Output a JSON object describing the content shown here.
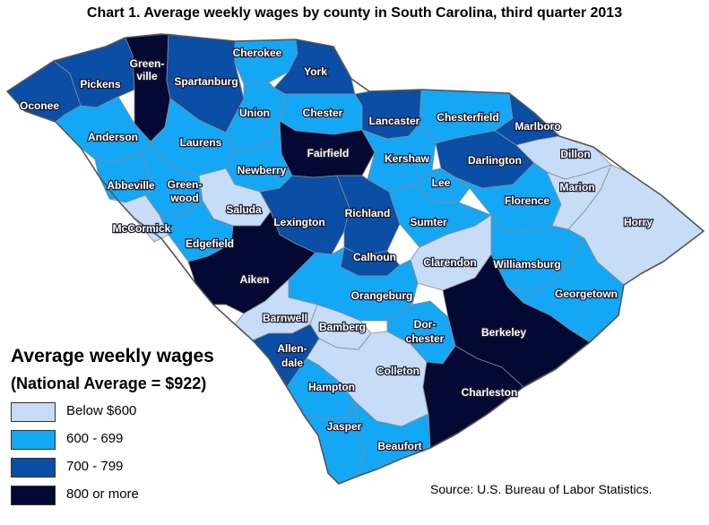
{
  "title": "Chart 1. Average weekly wages by county in South Carolina, third quarter 2013",
  "colors": {
    "below_600": "#c6dcf7",
    "c600_699": "#14a7f5",
    "c700_799": "#0a4ea6",
    "c800_plus": "#030933",
    "border": "#8a8a8a"
  },
  "legend": {
    "title": "Average weekly wages",
    "subtitle": "(National Average = $922)",
    "items": [
      {
        "label": "Below $600",
        "color": "#c6dcf7"
      },
      {
        "label": "600 - 699",
        "color": "#14a7f5"
      },
      {
        "label": "700 - 799",
        "color": "#0a4ea6"
      },
      {
        "label": "800 or more",
        "color": "#030933"
      }
    ]
  },
  "counties": [
    {
      "name": "Oconee",
      "category": "700 - 799"
    },
    {
      "name": "Pickens",
      "category": "700 - 799"
    },
    {
      "name": "Green-ville",
      "category": "800 or more"
    },
    {
      "name": "Spartanburg",
      "category": "700 - 799"
    },
    {
      "name": "Cherokee",
      "category": "600 - 699"
    },
    {
      "name": "York",
      "category": "700 - 799"
    },
    {
      "name": "Anderson",
      "category": "600 - 699"
    },
    {
      "name": "Laurens",
      "category": "600 - 699"
    },
    {
      "name": "Union",
      "category": "600 - 699"
    },
    {
      "name": "Chester",
      "category": "600 - 699"
    },
    {
      "name": "Lancaster",
      "category": "700 - 799"
    },
    {
      "name": "Chesterfield",
      "category": "600 - 699"
    },
    {
      "name": "Marlboro",
      "category": "700 - 799"
    },
    {
      "name": "Fairfield",
      "category": "800 or more"
    },
    {
      "name": "Kershaw",
      "category": "600 - 699"
    },
    {
      "name": "Darlington",
      "category": "700 - 799"
    },
    {
      "name": "Dillon",
      "category": "Below $600"
    },
    {
      "name": "Newberry",
      "category": "600 - 699"
    },
    {
      "name": "Abbeville",
      "category": "600 - 699"
    },
    {
      "name": "Green-wood",
      "category": "600 - 699"
    },
    {
      "name": "Saluda",
      "category": "Below $600"
    },
    {
      "name": "McCormick",
      "category": "Below $600"
    },
    {
      "name": "Lexington",
      "category": "700 - 799"
    },
    {
      "name": "Richland",
      "category": "700 - 799"
    },
    {
      "name": "Lee",
      "category": "600 - 699"
    },
    {
      "name": "Florence",
      "category": "600 - 699"
    },
    {
      "name": "Marion",
      "category": "Below $600"
    },
    {
      "name": "Horry",
      "category": "Below $600"
    },
    {
      "name": "Sumter",
      "category": "600 - 699"
    },
    {
      "name": "Edgefield",
      "category": "600 - 699"
    },
    {
      "name": "Calhoun",
      "category": "700 - 799"
    },
    {
      "name": "Clarendon",
      "category": "Below $600"
    },
    {
      "name": "Williamsburg",
      "category": "600 - 699"
    },
    {
      "name": "Aiken",
      "category": "800 or more"
    },
    {
      "name": "Orangeburg",
      "category": "600 - 699"
    },
    {
      "name": "Georgetown",
      "category": "600 - 699"
    },
    {
      "name": "Barnwell",
      "category": "Below $600"
    },
    {
      "name": "Bamberg",
      "category": "Below $600"
    },
    {
      "name": "Dor-chester",
      "category": "600 - 699"
    },
    {
      "name": "Berkeley",
      "category": "800 or more"
    },
    {
      "name": "Allen-dale",
      "category": "700 - 799"
    },
    {
      "name": "Colleton",
      "category": "Below $600"
    },
    {
      "name": "Hampton",
      "category": "600 - 699"
    },
    {
      "name": "Charleston",
      "category": "800 or more"
    },
    {
      "name": "Jasper",
      "category": "600 - 699"
    },
    {
      "name": "Beaufort",
      "category": "600 - 699"
    }
  ],
  "source": "Source: U.S. Bureau of Labor Statistics."
}
